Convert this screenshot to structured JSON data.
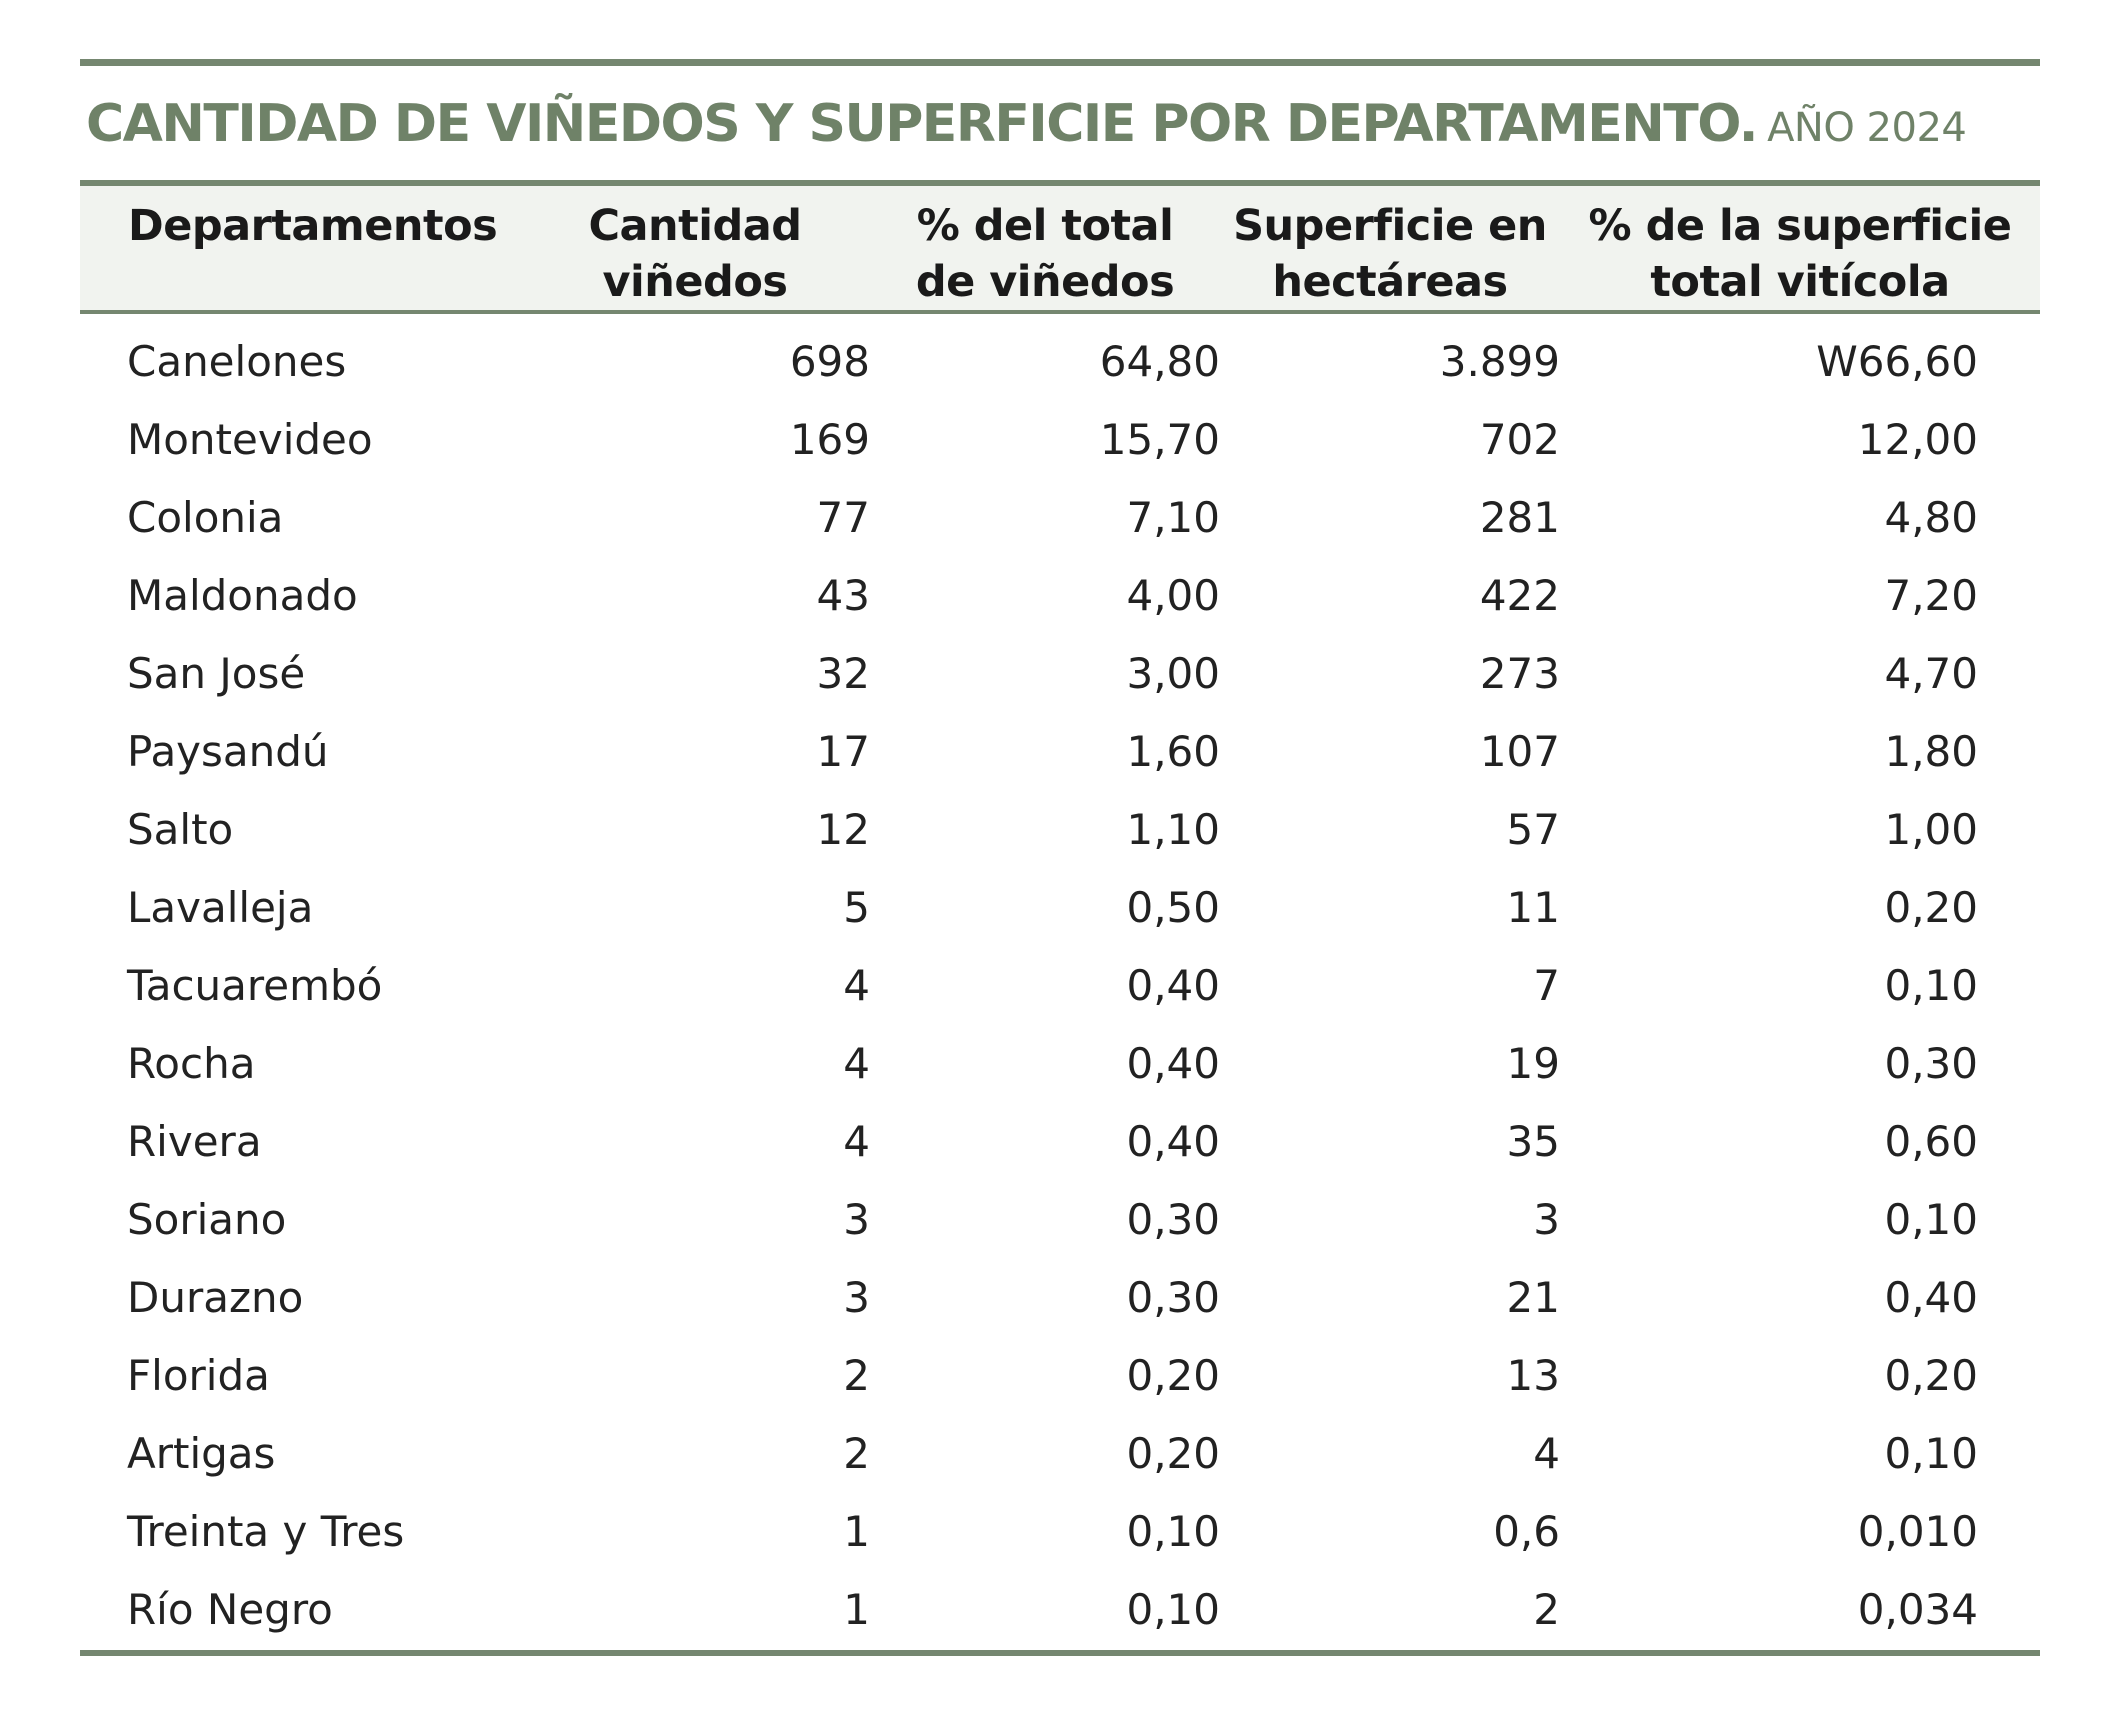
{
  "title": {
    "main": "CANTIDAD DE VIÑEDOS Y SUPERFICIE POR DEPARTAMENTO.",
    "year": "AÑO 2024"
  },
  "table": {
    "headers": [
      [
        "Departamentos",
        ""
      ],
      [
        "Cantidad",
        "viñedos"
      ],
      [
        "% del total",
        "de viñedos"
      ],
      [
        "Superficie en",
        "hectáreas"
      ],
      [
        "% de la superficie",
        "total vitícola"
      ]
    ],
    "rows": [
      [
        "Canelones",
        "698",
        "64,80",
        "3.899",
        "W66,60"
      ],
      [
        "Montevideo",
        "169",
        "15,70",
        "702",
        "12,00"
      ],
      [
        "Colonia",
        "77",
        "7,10",
        "281",
        "4,80"
      ],
      [
        "Maldonado",
        "43",
        "4,00",
        "422",
        "7,20"
      ],
      [
        "San José",
        "32",
        "3,00",
        "273",
        "4,70"
      ],
      [
        "Paysandú",
        "17",
        "1,60",
        "107",
        "1,80"
      ],
      [
        "Salto",
        "12",
        "1,10",
        "57",
        "1,00"
      ],
      [
        "Lavalleja",
        "5",
        "0,50",
        "11",
        "0,20"
      ],
      [
        "Tacuarembó",
        "4",
        "0,40",
        "7",
        "0,10"
      ],
      [
        "Rocha",
        "4",
        "0,40",
        "19",
        "0,30"
      ],
      [
        "Rivera",
        "4",
        "0,40",
        "35",
        "0,60"
      ],
      [
        "Soriano",
        "3",
        "0,30",
        "3",
        "0,10"
      ],
      [
        "Durazno",
        "3",
        "0,30",
        "21",
        "0,40"
      ],
      [
        "Florida",
        "2",
        "0,20",
        "13",
        "0,20"
      ],
      [
        "Artigas",
        "2",
        "0,20",
        "4",
        "0,10"
      ],
      [
        "Treinta y Tres",
        "1",
        "0,10",
        "0,6",
        "0,010"
      ],
      [
        "Río Negro",
        "1",
        "0,10",
        "2",
        "0,034"
      ]
    ]
  },
  "colors": {
    "accent": "#758770",
    "title": "#6f8268",
    "header_bg": "#f1f3ef",
    "text": "#222222"
  }
}
